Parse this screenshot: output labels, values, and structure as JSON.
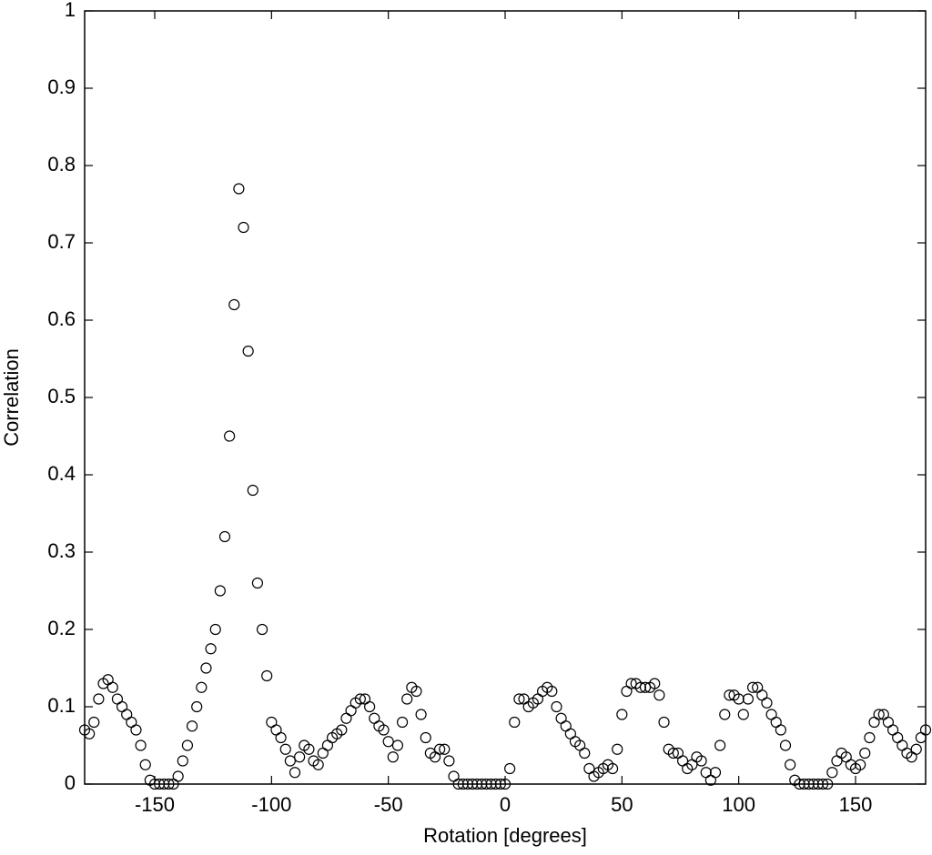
{
  "chart_data": {
    "type": "scatter",
    "x_label": "Rotation [degrees]",
    "y_label": "Correlation",
    "x": [
      -180,
      -178,
      -176,
      -174,
      -172,
      -170,
      -168,
      -166,
      -164,
      -162,
      -160,
      -158,
      -156,
      -154,
      -152,
      -150,
      -148,
      -146,
      -144,
      -142,
      -140,
      -138,
      -136,
      -134,
      -132,
      -130,
      -128,
      -126,
      -124,
      -122,
      -120,
      -118,
      -116,
      -114,
      -112,
      -110,
      -108,
      -106,
      -104,
      -102,
      -100,
      -98,
      -96,
      -94,
      -92,
      -90,
      -88,
      -86,
      -84,
      -82,
      -80,
      -78,
      -76,
      -74,
      -72,
      -70,
      -68,
      -66,
      -64,
      -62,
      -60,
      -58,
      -56,
      -54,
      -52,
      -50,
      -48,
      -46,
      -44,
      -42,
      -40,
      -38,
      -36,
      -34,
      -32,
      -30,
      -28,
      -26,
      -24,
      -22,
      -20,
      -18,
      -16,
      -14,
      -12,
      -10,
      -8,
      -6,
      -4,
      -2,
      0,
      2,
      4,
      6,
      8,
      10,
      12,
      14,
      16,
      18,
      20,
      22,
      24,
      26,
      28,
      30,
      32,
      34,
      36,
      38,
      40,
      42,
      44,
      46,
      48,
      50,
      52,
      54,
      56,
      58,
      60,
      62,
      64,
      66,
      68,
      70,
      72,
      74,
      76,
      78,
      80,
      82,
      84,
      86,
      88,
      90,
      92,
      94,
      96,
      98,
      100,
      102,
      104,
      106,
      108,
      110,
      112,
      114,
      116,
      118,
      120,
      122,
      124,
      126,
      128,
      130,
      132,
      134,
      136,
      138,
      140,
      142,
      144,
      146,
      148,
      150,
      152,
      154,
      156,
      158,
      160,
      162,
      164,
      166,
      168,
      170,
      172,
      174,
      176,
      178,
      180
    ],
    "values": [
      0.07,
      0.065,
      0.08,
      0.11,
      0.13,
      0.135,
      0.125,
      0.11,
      0.1,
      0.09,
      0.08,
      0.07,
      0.05,
      0.025,
      0.005,
      0,
      0,
      0,
      0,
      0,
      0.01,
      0.03,
      0.05,
      0.075,
      0.1,
      0.125,
      0.15,
      0.175,
      0.2,
      0.25,
      0.32,
      0.45,
      0.62,
      0.77,
      0.72,
      0.56,
      0.38,
      0.26,
      0.2,
      0.14,
      0.08,
      0.07,
      0.06,
      0.045,
      0.03,
      0.015,
      0.035,
      0.05,
      0.045,
      0.03,
      0.025,
      0.04,
      0.05,
      0.06,
      0.065,
      0.07,
      0.085,
      0.095,
      0.105,
      0.11,
      0.11,
      0.1,
      0.085,
      0.075,
      0.07,
      0.055,
      0.035,
      0.05,
      0.08,
      0.11,
      0.125,
      0.12,
      0.09,
      0.06,
      0.04,
      0.035,
      0.045,
      0.045,
      0.03,
      0.01,
      0,
      0,
      0,
      0,
      0,
      0,
      0,
      0,
      0,
      0,
      0,
      0.02,
      0.08,
      0.11,
      0.11,
      0.1,
      0.105,
      0.11,
      0.12,
      0.125,
      0.12,
      0.1,
      0.085,
      0.075,
      0.065,
      0.055,
      0.05,
      0.04,
      0.02,
      0.01,
      0.015,
      0.02,
      0.025,
      0.02,
      0.045,
      0.09,
      0.12,
      0.13,
      0.13,
      0.125,
      0.125,
      0.125,
      0.13,
      0.115,
      0.08,
      0.045,
      0.04,
      0.04,
      0.03,
      0.02,
      0.025,
      0.035,
      0.03,
      0.015,
      0.005,
      0.015,
      0.05,
      0.09,
      0.115,
      0.115,
      0.11,
      0.09,
      0.11,
      0.125,
      0.125,
      0.115,
      0.105,
      0.09,
      0.08,
      0.07,
      0.05,
      0.025,
      0.005,
      0,
      0,
      0,
      0,
      0,
      0,
      0,
      0.015,
      0.03,
      0.04,
      0.035,
      0.025,
      0.02,
      0.025,
      0.04,
      0.06,
      0.08,
      0.09,
      0.09,
      0.08,
      0.07,
      0.06,
      0.05,
      0.04,
      0.035,
      0.045,
      0.06,
      0.07
    ],
    "color": "#000000",
    "xlim": [
      -180,
      180
    ],
    "xticks": [
      -150,
      -100,
      -50,
      0,
      50,
      100,
      150
    ],
    "ylim": [
      0,
      1
    ],
    "yticks": [
      0,
      0.1,
      0.2,
      0.3,
      0.4,
      0.5,
      0.6,
      0.7,
      0.8,
      0.9,
      1
    ],
    "grid": false
  }
}
